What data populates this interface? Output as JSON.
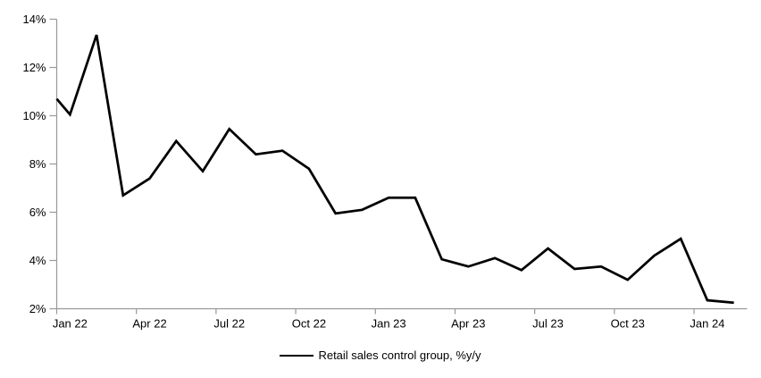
{
  "chart_data": {
    "type": "line",
    "title": "",
    "x": [
      "Jan 22",
      "Feb 22",
      "Mar 22",
      "Apr 22",
      "May 22",
      "Jun 22",
      "Jul 22",
      "Aug 22",
      "Sep 22",
      "Oct 22",
      "Nov 22",
      "Dec 22",
      "Jan 23",
      "Feb 23",
      "Mar 23",
      "Apr 23",
      "May 23",
      "Jun 23",
      "Jul 23",
      "Aug 23",
      "Sep 23",
      "Oct 23",
      "Nov 23",
      "Dec 23",
      "Jan 24",
      "Feb 24"
    ],
    "series": [
      {
        "name": "Retail sales control group, %y/y",
        "values": [
          10.05,
          13.35,
          6.7,
          7.4,
          8.95,
          7.7,
          9.45,
          8.4,
          8.55,
          7.8,
          5.95,
          6.1,
          6.6,
          6.6,
          4.05,
          3.75,
          4.1,
          3.6,
          4.5,
          3.65,
          3.75,
          3.2,
          4.2,
          4.9,
          2.35,
          2.25
        ]
      }
    ],
    "left_edge_entry_value": 10.7,
    "xlabel": "",
    "ylabel": "",
    "ylim": [
      2,
      14
    ],
    "ytick_step": 2,
    "ytick_labels": [
      "2%",
      "4%",
      "6%",
      "8%",
      "10%",
      "12%",
      "14%"
    ],
    "xtick_labels": [
      "Jan 22",
      "Apr 22",
      "Jul 22",
      "Oct 22",
      "Jan 23",
      "Apr 23",
      "Jul 23",
      "Oct 23",
      "Jan 24"
    ],
    "xtick_interval_months": 3,
    "grid": "off",
    "legend_position": "bottom-center",
    "colors": {
      "series_line": "#000000",
      "axis": "#999999",
      "tick_label": "#000000",
      "background": "#ffffff"
    }
  },
  "legend": {
    "label": "Retail sales control group, %y/y"
  }
}
